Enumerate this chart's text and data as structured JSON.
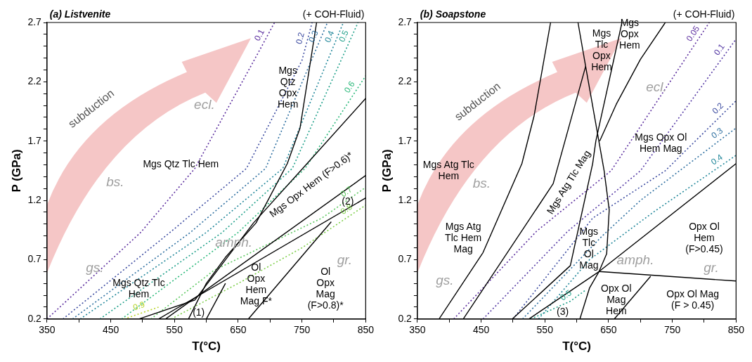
{
  "chart_data": [
    {
      "type": "line",
      "title": "(a) Listvenite",
      "subtitle": "(+ COH-Fluid)",
      "xlabel": "T(°C)",
      "ylabel": "P (GPa)",
      "xlim": [
        350,
        850
      ],
      "ylim": [
        0.2,
        2.7
      ],
      "xticks": [
        350,
        {
          "value": 400,
          "label": null
        },
        450,
        {
          "value": 500,
          "label": null
        },
        550,
        {
          "value": 600,
          "label": null
        },
        650,
        {
          "value": 700,
          "label": null
        },
        750,
        {
          "value": 800,
          "label": null
        },
        850
      ],
      "yticks": [
        0.2,
        {
          "value": 0.3,
          "label": null
        },
        {
          "value": 0.4,
          "label": null
        },
        {
          "value": 0.5,
          "label": null
        },
        {
          "value": 0.6,
          "label": null
        },
        0.7,
        {
          "value": 0.8,
          "label": null
        },
        {
          "value": 0.9,
          "label": null
        },
        {
          "value": 1.0,
          "label": null
        },
        {
          "value": 1.1,
          "label": null
        },
        1.2,
        {
          "value": 1.3,
          "label": null
        },
        {
          "value": 1.4,
          "label": null
        },
        {
          "value": 1.5,
          "label": null
        },
        {
          "value": 1.6,
          "label": null
        },
        1.7,
        {
          "value": 1.8,
          "label": null
        },
        {
          "value": 1.9,
          "label": null
        },
        {
          "value": 2.0,
          "label": null
        },
        {
          "value": 2.1,
          "label": null
        },
        2.2,
        {
          "value": 2.3,
          "label": null
        },
        {
          "value": 2.4,
          "label": null
        },
        {
          "value": 2.5,
          "label": null
        },
        {
          "value": 2.6,
          "label": null
        },
        2.7
      ],
      "grid": false,
      "legend": false,
      "marker": "none",
      "series": [
        {
          "type": "line",
          "color": "#000000",
          "line_style": "solid",
          "x": [
            773,
            747,
            727,
            678,
            630,
            600,
            572
          ],
          "values": [
            2.7,
            1.81,
            1.51,
            1.01,
            0.72,
            0.5,
            0.2
          ]
        },
        {
          "type": "line",
          "color": "#000000",
          "line_style": "solid",
          "x": [
            494,
            582,
            674,
            758,
            850
          ],
          "values": [
            0.2,
            0.36,
            1.01,
            1.51,
            2.06
          ]
        },
        {
          "type": "line",
          "color": "#000000",
          "line_style": "solid",
          "x": [
            536,
            850
          ],
          "values": [
            0.2,
            1.41
          ]
        },
        {
          "type": "line",
          "color": "#000000",
          "line_style": "solid",
          "x": [
            525,
            850
          ],
          "values": [
            0.2,
            1.22
          ]
        },
        {
          "type": "line",
          "color": "#000000",
          "line_style": "solid",
          "x": [
            666,
            796
          ],
          "values": [
            0.2,
            1.02
          ]
        },
        {
          "type": "line",
          "color": "#000000",
          "line_style": "solid",
          "x": [
            600,
            630
          ],
          "values": [
            0.2,
            0.5
          ]
        },
        {
          "type": "line",
          "name": "0.1",
          "color": "#5b2d9e",
          "line_style": "dotted",
          "x": [
            350,
            497,
            582,
            689,
            707
          ],
          "values": [
            0.2,
            0.93,
            1.47,
            2.52,
            2.7
          ]
        },
        {
          "type": "line",
          "name": "0.2",
          "color": "#3b4aa0",
          "line_style": "dotted",
          "x": [
            375,
            543,
            663,
            750,
            766
          ],
          "values": [
            0.2,
            0.93,
            1.47,
            2.38,
            2.7
          ]
        },
        {
          "type": "line",
          "name": "0.3",
          "color": "#2d6fa0",
          "line_style": "dotted",
          "x": [
            390,
            575,
            693,
            790
          ],
          "values": [
            0.2,
            0.93,
            1.47,
            2.7
          ]
        },
        {
          "type": "line",
          "name": "0.4",
          "color": "#21879a",
          "line_style": "dotted",
          "x": [
            402,
            600,
            720,
            815
          ],
          "values": [
            0.2,
            0.93,
            1.47,
            2.7
          ]
        },
        {
          "type": "line",
          "name": "0.5",
          "color": "#1fa08a",
          "line_style": "dotted",
          "x": [
            433,
            625,
            735,
            838
          ],
          "values": [
            0.2,
            0.93,
            1.47,
            2.7
          ]
        },
        {
          "type": "line",
          "name": "0.6",
          "color": "#2ab87a",
          "line_style": "dotted",
          "x": [
            467,
            650,
            755,
            850
          ],
          "values": [
            0.2,
            0.93,
            1.47,
            2.25
          ]
        },
        {
          "type": "line",
          "name": "0.7",
          "color": "#5cc860",
          "line_style": "dotted",
          "x": [
            513,
            612,
            781,
            850
          ],
          "values": [
            0.2,
            0.61,
            1.05,
            1.31
          ]
        },
        {
          "type": "line",
          "name": "0.8",
          "color": "#7ecf4a",
          "line_style": "dotted",
          "x": [
            545,
            650,
            750,
            850
          ],
          "values": [
            0.2,
            0.5,
            0.8,
            1.16
          ]
        },
        {
          "type": "line",
          "name": "0.9",
          "color": "#b8d42a",
          "line_style": "dotted",
          "x": [
            471,
            525
          ],
          "values": [
            0.2,
            0.3
          ]
        }
      ],
      "annotations": [
        "subduction",
        "ecl.",
        "bs.",
        "gs.",
        "amph.",
        "gr.",
        "Mgs Qtz Tlc Hem",
        "Mgs\nQtz\nOpx\nHem",
        "Mgs Opx Hem (F>0.6)*",
        "(2)",
        "Ol\nOpx\nHem\nMag F*",
        "Ol\nOpx\nMag\n(F>0.8)*",
        "Mgs Qtz Tlc\nHem",
        "(1)"
      ]
    },
    {
      "type": "line",
      "title": "(b) Soapstone",
      "subtitle": "(+ COH-Fluid)",
      "xlabel": "T(°C)",
      "ylabel": "P (GPa)",
      "xlim": [
        350,
        850
      ],
      "ylim": [
        0.2,
        2.7
      ],
      "xticks": [
        350,
        {
          "value": 400,
          "label": null
        },
        450,
        {
          "value": 500,
          "label": null
        },
        550,
        {
          "value": 600,
          "label": null
        },
        650,
        {
          "value": 700,
          "label": null
        },
        750,
        {
          "value": 800,
          "label": null
        },
        850
      ],
      "yticks": [
        0.2,
        {
          "value": 0.3,
          "label": null
        },
        {
          "value": 0.4,
          "label": null
        },
        {
          "value": 0.5,
          "label": null
        },
        {
          "value": 0.6,
          "label": null
        },
        0.7,
        {
          "value": 0.8,
          "label": null
        },
        {
          "value": 0.9,
          "label": null
        },
        {
          "value": 1.0,
          "label": null
        },
        {
          "value": 1.1,
          "label": null
        },
        1.2,
        {
          "value": 1.3,
          "label": null
        },
        {
          "value": 1.4,
          "label": null
        },
        {
          "value": 1.5,
          "label": null
        },
        {
          "value": 1.6,
          "label": null
        },
        1.7,
        {
          "value": 1.8,
          "label": null
        },
        {
          "value": 1.9,
          "label": null
        },
        {
          "value": 2.0,
          "label": null
        },
        {
          "value": 2.1,
          "label": null
        },
        2.2,
        {
          "value": 2.3,
          "label": null
        },
        {
          "value": 2.4,
          "label": null
        },
        {
          "value": 2.5,
          "label": null
        },
        {
          "value": 2.6,
          "label": null
        },
        2.7
      ],
      "grid": false,
      "legend": false,
      "marker": "none",
      "series": [
        {
          "type": "line",
          "color": "#000000",
          "line_style": "solid",
          "x": [
            384,
            453,
            514,
            533,
            559
          ],
          "values": [
            0.2,
            0.76,
            1.51,
            1.91,
            2.7
          ]
        },
        {
          "type": "line",
          "color": "#000000",
          "line_style": "solid",
          "x": [
            422,
            563,
            614
          ],
          "values": [
            0.2,
            1.34,
            2.33
          ]
        },
        {
          "type": "line",
          "color": "#000000",
          "line_style": "solid",
          "x": [
            602,
            614,
            643,
            651,
            647,
            635,
            620,
            605
          ],
          "values": [
            2.7,
            2.33,
            1.45,
            1.12,
            0.75,
            0.6,
            0.46,
            0.2
          ]
        },
        {
          "type": "line",
          "color": "#000000",
          "line_style": "solid",
          "x": [
            499,
            590,
            625,
            630,
            671
          ],
          "values": [
            0.2,
            0.65,
            1.51,
            1.7,
            2.7
          ]
        },
        {
          "type": "line",
          "color": "#000000",
          "line_style": "solid",
          "x": [
            739,
            700,
            662,
            636
          ],
          "values": [
            2.7,
            2.39,
            2.01,
            1.7
          ]
        },
        {
          "type": "line",
          "color": "#000000",
          "line_style": "solid",
          "x": [
            525,
            635,
            850
          ],
          "values": [
            0.2,
            0.6,
            1.51
          ]
        },
        {
          "type": "line",
          "color": "#000000",
          "line_style": "solid",
          "x": [
            635,
            850
          ],
          "values": [
            0.6,
            0.52
          ]
        },
        {
          "type": "line",
          "color": "#000000",
          "line_style": "solid",
          "x": [
            659,
            716
          ],
          "values": [
            0.2,
            0.56
          ]
        },
        {
          "type": "line",
          "name": "0.05",
          "color": "#5b2d9e",
          "line_style": "dotted",
          "x": [
            407,
            537,
            654,
            808
          ],
          "values": [
            0.2,
            0.94,
            1.45,
            2.7
          ]
        },
        {
          "type": "line",
          "name": "0.1",
          "color": "#5438a4",
          "line_style": "dotted",
          "x": [
            453,
            586,
            700,
            850
          ],
          "values": [
            0.2,
            0.94,
            1.45,
            2.56
          ]
        },
        {
          "type": "line",
          "name": "0.2",
          "color": "#3b4aa0",
          "line_style": "dotted",
          "x": [
            500,
            625,
            739,
            850
          ],
          "values": [
            0.2,
            1.05,
            1.45,
            2.04
          ]
        },
        {
          "type": "line",
          "name": "0.3",
          "color": "#2d6fa0",
          "line_style": "dotted",
          "x": [
            515,
            640,
            700,
            850
          ],
          "values": [
            0.2,
            0.9,
            1.2,
            1.81
          ]
        },
        {
          "type": "line",
          "name": "0.4",
          "color": "#21879a",
          "line_style": "dotted",
          "x": [
            540,
            620,
            720,
            850
          ],
          "values": [
            0.2,
            0.7,
            1.1,
            1.58
          ]
        },
        {
          "type": "line",
          "name": "0.5",
          "color": "#1fa08a",
          "line_style": "dotted",
          "x": [
            528,
            590,
            613
          ],
          "values": [
            0.2,
            0.35,
            0.44
          ]
        }
      ],
      "annotations": [
        "subduction",
        "ecl.",
        "bs.",
        "gs.",
        "amph.",
        "gr.",
        "Mgs\nTlc\nOpx\nHem",
        "Mgs\nOpx\nHem",
        "Mgs Opx Ol\nHem Mag",
        "Mgs Atg Tlc\nHem",
        "Mgs Atg Tlc Mag",
        "Mgs Atg\nTlc Hem\nMag",
        "Mgs\nTlc\nOl\nMag",
        "Opx Ol\nHem\n(F>0.45)",
        "Opx Ol\nMag\nHem",
        "Opx Ol Mag\n(F > 0.45)",
        "(3)"
      ]
    }
  ]
}
